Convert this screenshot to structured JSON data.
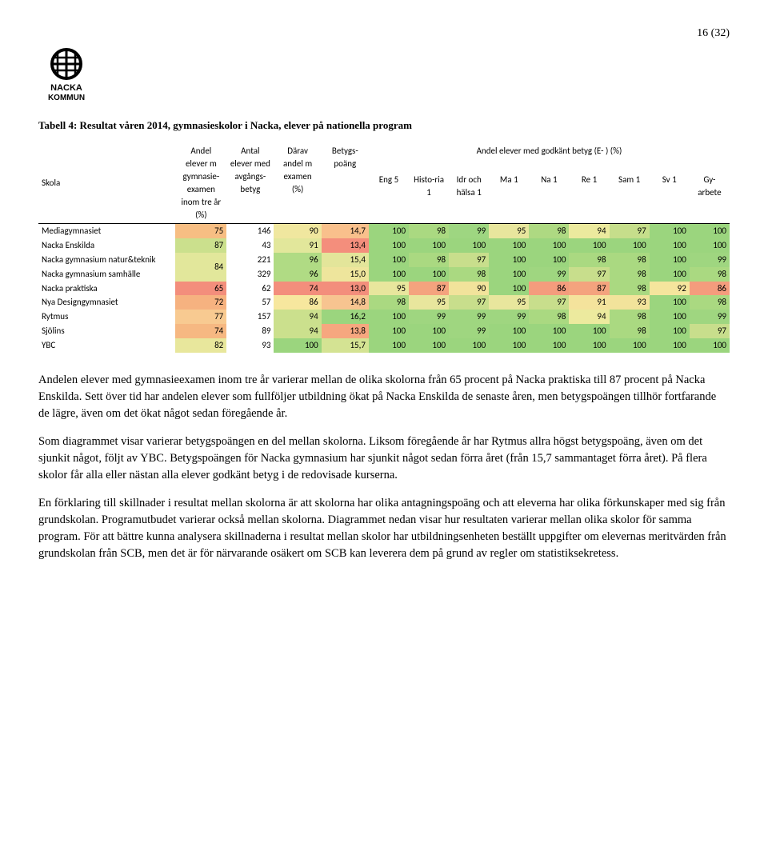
{
  "page_number": "16 (32)",
  "logo_text": "NACKA KOMMUN",
  "table_caption": "Tabell 4: Resultat våren 2014, gymnasieskolor i Nacka, elever på nationella program",
  "header_row1": {
    "skola": "Skola",
    "andel_examen": "Andel elever m gymnasie-examen inom tre år (%)",
    "antal_elever": "Antal elever med avgångs-betyg",
    "darav": "Därav andel m examen (%)",
    "betygspoang": "Betygs-poäng",
    "group": "Andel elever med godkänt betyg (E- ) (%)"
  },
  "header_row2": [
    "Eng 5",
    "Histo-ria 1",
    "Idr och hälsa 1",
    "Ma 1",
    "Na 1",
    "Re 1",
    "Sam 1",
    "Sv 1",
    "Gy-arbete"
  ],
  "rows": [
    {
      "label": "Mediagymnasiet",
      "c0": "75",
      "c1": "146",
      "c2": "90",
      "c3": "14,7",
      "s": [
        "100",
        "98",
        "99",
        "95",
        "98",
        "94",
        "97",
        "100",
        "100"
      ],
      "bg0": "#f7be83",
      "bg2": "#f0e79f",
      "bg3": "#f9c08c",
      "sb": [
        "#9bd57e",
        "#aad981",
        "#9ed681",
        "#e8e69d",
        "#aed982",
        "#ecea9e",
        "#c6de8b",
        "#9bd57e",
        "#9bd57e"
      ]
    },
    {
      "label": "Nacka Enskilda",
      "c0": "87",
      "c1": "43",
      "c2": "91",
      "c3": "13,4",
      "s": [
        "100",
        "100",
        "100",
        "100",
        "100",
        "100",
        "100",
        "100",
        "100"
      ],
      "bg0": "#cbe08d",
      "bg2": "#e2e79b",
      "bg3": "#f48e7c",
      "sb": [
        "#9bd57e",
        "#9bd57e",
        "#9bd57e",
        "#9bd57e",
        "#9bd57e",
        "#9bd57e",
        "#9bd57e",
        "#9bd57e",
        "#9bd57e"
      ]
    },
    {
      "label": "Nacka gymnasium natur&teknik",
      "c0": "84",
      "c1": "221",
      "c2": "96",
      "c3": "15,4",
      "s": [
        "100",
        "98",
        "97",
        "100",
        "100",
        "98",
        "98",
        "100",
        "99"
      ],
      "bg0": "#e2e79b",
      "bg2": "#b0db84",
      "bg3": "#e3e59a",
      "sb": [
        "#9bd57e",
        "#aad981",
        "#c8de8c",
        "#9bd57e",
        "#9bd57e",
        "#aad981",
        "#aad981",
        "#9bd57e",
        "#9fd680"
      ],
      "rowspan0": true
    },
    {
      "label": "Nacka gymnasium samhälle",
      "c0": "",
      "c1": "329",
      "c2": "96",
      "c3": "15,0",
      "s": [
        "100",
        "100",
        "98",
        "100",
        "99",
        "97",
        "98",
        "100",
        "98"
      ],
      "bg0": "",
      "bg2": "#b0db84",
      "bg3": "#eee59c",
      "sb": [
        "#9bd57e",
        "#9bd57e",
        "#aad981",
        "#9bd57e",
        "#9fd680",
        "#c8de8c",
        "#aad981",
        "#9bd57e",
        "#aad981"
      ]
    },
    {
      "label": "Nacka praktiska",
      "c0": "65",
      "c1": "62",
      "c2": "74",
      "c3": "13,0",
      "s": [
        "95",
        "87",
        "90",
        "100",
        "86",
        "87",
        "98",
        "92",
        "86"
      ],
      "bg0": "#f38e7c",
      "bg2": "#f38e7c",
      "bg3": "#f38e7c",
      "sb": [
        "#e8e69d",
        "#f4a37e",
        "#f2e39b",
        "#9bd57e",
        "#f49c7d",
        "#f4a37e",
        "#aad981",
        "#f5e59d",
        "#f49c7d"
      ]
    },
    {
      "label": "Nya Designgymnasiet",
      "c0": "72",
      "c1": "57",
      "c2": "86",
      "c3": "14,8",
      "s": [
        "98",
        "95",
        "97",
        "95",
        "97",
        "91",
        "93",
        "100",
        "98"
      ],
      "bg0": "#f6b280",
      "bg2": "#f7e79e",
      "bg3": "#f7c490",
      "sb": [
        "#aad981",
        "#e8e69d",
        "#c8de8c",
        "#e8e69d",
        "#c8de8c",
        "#f4e39c",
        "#f2e39b",
        "#9bd57e",
        "#aad981"
      ]
    },
    {
      "label": "Rytmus",
      "c0": "77",
      "c1": "157",
      "c2": "94",
      "c3": "16,2",
      "s": [
        "100",
        "99",
        "99",
        "99",
        "98",
        "94",
        "98",
        "100",
        "99"
      ],
      "bg0": "#f8ca91",
      "bg2": "#cbe08d",
      "bg3": "#9bd57e",
      "sb": [
        "#9bd57e",
        "#9fd680",
        "#9fd680",
        "#9fd680",
        "#aad981",
        "#ecea9e",
        "#aad981",
        "#9bd57e",
        "#9fd680"
      ]
    },
    {
      "label": "Sjölins",
      "c0": "74",
      "c1": "89",
      "c2": "94",
      "c3": "13,8",
      "s": [
        "100",
        "100",
        "99",
        "100",
        "100",
        "100",
        "98",
        "100",
        "97"
      ],
      "bg0": "#f6b882",
      "bg2": "#cbe08d",
      "bg3": "#f6a77f",
      "sb": [
        "#9bd57e",
        "#9bd57e",
        "#9fd680",
        "#9bd57e",
        "#9bd57e",
        "#9bd57e",
        "#aad981",
        "#9bd57e",
        "#c8de8c"
      ]
    },
    {
      "label": "YBC",
      "c0": "82",
      "c1": "93",
      "c2": "100",
      "c3": "15,7",
      "s": [
        "100",
        "100",
        "100",
        "100",
        "100",
        "100",
        "100",
        "100",
        "100"
      ],
      "bg0": "#e8e79c",
      "bg2": "#9bd57e",
      "bg3": "#d4e393",
      "sb": [
        "#9bd57e",
        "#9bd57e",
        "#9bd57e",
        "#9bd57e",
        "#9bd57e",
        "#9bd57e",
        "#9bd57e",
        "#9bd57e",
        "#9bd57e"
      ]
    }
  ],
  "paragraphs": [
    "Andelen elever med gymnasieexamen inom tre år varierar mellan de olika skolorna från 65 procent på Nacka praktiska till 87 procent på Nacka Enskilda. Sett över tid har andelen elever som fullföljer utbildning ökat på Nacka Enskilda de senaste åren, men betygspoängen tillhör fortfarande de lägre, även om det ökat något sedan föregående år.",
    "Som diagrammet visar varierar betygspoängen en del mellan skolorna. Liksom föregående år har Rytmus allra högst betygspoäng, även om det sjunkit något, följt av YBC. Betygspoängen för Nacka gymnasium har sjunkit något sedan förra året (från 15,7 sammantaget förra året). På flera skolor får alla eller nästan alla elever godkänt betyg i de redovisade kurserna.",
    "En förklaring till skillnader i resultat mellan skolorna är att skolorna har olika antagningspoäng och att eleverna har olika förkunskaper med sig från grundskolan. Programutbudet varierar också mellan skolorna. Diagrammet nedan visar hur resultaten varierar mellan olika skolor för samma program. För att bättre kunna analysera skillnaderna i resultat mellan skolor har utbildningsenheten beställt uppgifter om elevernas meritvärden från grundskolan från SCB, men det är för närvarande osäkert om SCB kan leverera dem på grund av regler om statistiksekretess."
  ],
  "col_widths": {
    "label": "150px",
    "c0": "56px",
    "c1": "52px",
    "c2": "52px",
    "c3": "52px",
    "subj": "44px"
  }
}
